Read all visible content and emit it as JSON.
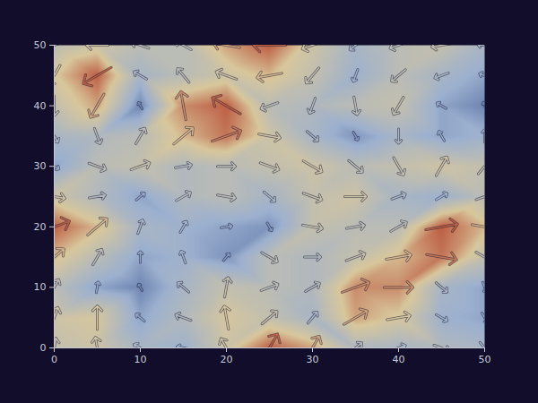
{
  "chart_data": {
    "type": "vector_field",
    "x": [
      0,
      5,
      10,
      15,
      20,
      25,
      30,
      35,
      40,
      45,
      50
    ],
    "y": [
      50,
      45,
      40,
      35,
      30,
      25,
      20,
      15,
      10,
      5,
      0
    ],
    "magnitude": [
      [
        0.5,
        0.6,
        0.5,
        0.5,
        0.75,
        0.9,
        0.6,
        0.4,
        0.5,
        0.55,
        0.4
      ],
      [
        0.65,
        0.9,
        0.4,
        0.5,
        0.6,
        0.7,
        0.55,
        0.35,
        0.5,
        0.4,
        0.3
      ],
      [
        0.55,
        0.75,
        0.2,
        0.8,
        0.9,
        0.5,
        0.45,
        0.5,
        0.55,
        0.3,
        0.2
      ],
      [
        0.4,
        0.45,
        0.5,
        0.7,
        0.85,
        0.6,
        0.4,
        0.25,
        0.4,
        0.3,
        0.35
      ],
      [
        0.3,
        0.5,
        0.55,
        0.45,
        0.5,
        0.55,
        0.6,
        0.5,
        0.55,
        0.6,
        0.55
      ],
      [
        0.6,
        0.45,
        0.3,
        0.45,
        0.5,
        0.4,
        0.55,
        0.6,
        0.4,
        0.35,
        0.5
      ],
      [
        0.9,
        0.7,
        0.4,
        0.35,
        0.3,
        0.25,
        0.55,
        0.5,
        0.5,
        0.9,
        0.7
      ],
      [
        0.7,
        0.5,
        0.3,
        0.35,
        0.25,
        0.5,
        0.45,
        0.55,
        0.7,
        0.85,
        0.55
      ],
      [
        0.5,
        0.3,
        0.2,
        0.4,
        0.55,
        0.5,
        0.45,
        0.8,
        0.8,
        0.4,
        0.3
      ],
      [
        0.6,
        0.65,
        0.3,
        0.45,
        0.65,
        0.55,
        0.4,
        0.75,
        0.65,
        0.35,
        0.3
      ],
      [
        0.55,
        0.6,
        0.4,
        0.35,
        0.6,
        0.9,
        0.75,
        0.45,
        0.4,
        0.45,
        0.4
      ]
    ],
    "angle": [
      [
        200,
        180,
        160,
        150,
        170,
        180,
        200,
        220,
        200,
        190,
        170
      ],
      [
        240,
        210,
        150,
        130,
        160,
        190,
        230,
        250,
        220,
        200,
        160
      ],
      [
        270,
        240,
        120,
        100,
        150,
        200,
        250,
        280,
        240,
        150,
        110
      ],
      [
        300,
        290,
        60,
        40,
        20,
        350,
        320,
        300,
        270,
        120,
        90
      ],
      [
        330,
        340,
        20,
        10,
        0,
        340,
        330,
        320,
        300,
        60,
        50
      ],
      [
        350,
        10,
        40,
        30,
        350,
        320,
        340,
        0,
        20,
        30,
        20
      ],
      [
        20,
        40,
        70,
        60,
        10,
        300,
        350,
        10,
        30,
        10,
        350
      ],
      [
        40,
        60,
        90,
        110,
        50,
        330,
        0,
        20,
        10,
        350,
        330
      ],
      [
        60,
        80,
        120,
        140,
        80,
        20,
        30,
        20,
        0,
        320,
        290
      ],
      [
        70,
        90,
        140,
        160,
        100,
        40,
        50,
        30,
        10,
        330,
        300
      ],
      [
        80,
        100,
        150,
        170,
        120,
        60,
        60,
        40,
        20,
        340,
        310
      ]
    ],
    "magnitude_range": [
      0,
      1
    ],
    "colors": [
      "#2b4585",
      "#9cb0cf",
      "#d8c79c",
      "#b2321f"
    ],
    "xlim": [
      0,
      50
    ],
    "ylim": [
      0,
      50
    ],
    "xticks": [
      0,
      10,
      20,
      30,
      40,
      50
    ],
    "yticks": [
      0,
      10,
      20,
      30,
      40,
      50
    ],
    "grid": false
  }
}
